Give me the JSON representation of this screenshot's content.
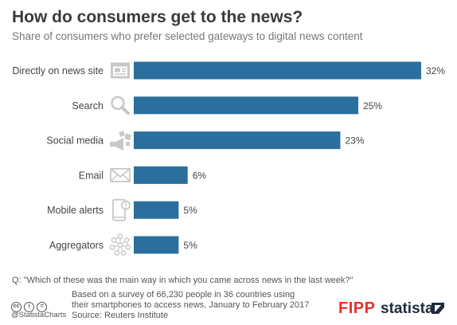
{
  "chart_data": {
    "type": "bar",
    "orientation": "horizontal",
    "title": "How do consumers get to the news?",
    "subtitle": "Share of consumers who prefer selected gateways to digital news content",
    "categories": [
      "Directly on news site",
      "Search",
      "Social media",
      "Email",
      "Mobile alerts",
      "Aggregators"
    ],
    "values": [
      32,
      25,
      23,
      6,
      5,
      5
    ],
    "value_labels": [
      "32%",
      "25%",
      "23%",
      "6%",
      "5%",
      "5%"
    ],
    "icons": [
      "browser-window-icon",
      "magnifier-icon",
      "megaphone-icon",
      "envelope-icon",
      "smartphone-icon",
      "network-icon"
    ],
    "xlim": [
      0,
      32
    ],
    "grid": false,
    "bar_color": "#2b6f9e"
  },
  "footer": {
    "question": "Q: \"Which of these was the main way in which you came across news in the last week?\"",
    "note_line1": "Based on a survey of 66,230 people in 36 countries using",
    "note_line2": "their smartphones to access news, January to February 2017",
    "source": "Source: Reuters Institute",
    "handle": "@StatistaCharts",
    "cc_glyphs": [
      "cc",
      "i",
      "="
    ]
  },
  "logos": {
    "fipp": "FIPP",
    "statista": "statista",
    "fipp_color": "#e8302b",
    "statista_color": "#1d2b3a"
  }
}
